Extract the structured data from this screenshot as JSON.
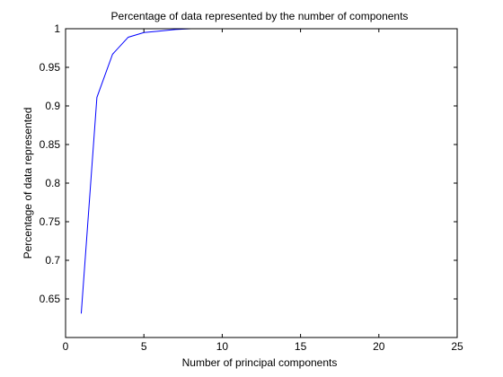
{
  "chart_data": {
    "type": "line",
    "title": "Percentage of data represented by the number of components",
    "xlabel": "Number of principal components",
    "ylabel": "Percentage of data represented",
    "xlim": [
      0,
      25
    ],
    "ylim": [
      0.6,
      1.0
    ],
    "xticks": [
      0,
      5,
      10,
      15,
      20,
      25
    ],
    "yticks": [
      0.65,
      0.7,
      0.75,
      0.8,
      0.85,
      0.9,
      0.95,
      1
    ],
    "ytick_labels": [
      "0.65",
      "0.7",
      "0.75",
      "0.8",
      "0.85",
      "0.9",
      "0.95",
      "1"
    ],
    "xtick_labels": [
      "0",
      "5",
      "10",
      "15",
      "20",
      "25"
    ],
    "grid": false,
    "series": [
      {
        "color": "#0000ff",
        "x": [
          1,
          2,
          3,
          4,
          5,
          6,
          7,
          8,
          8.5
        ],
        "y": [
          0.631,
          0.911,
          0.967,
          0.989,
          0.995,
          0.997,
          0.999,
          1.0,
          1.0
        ]
      }
    ]
  }
}
